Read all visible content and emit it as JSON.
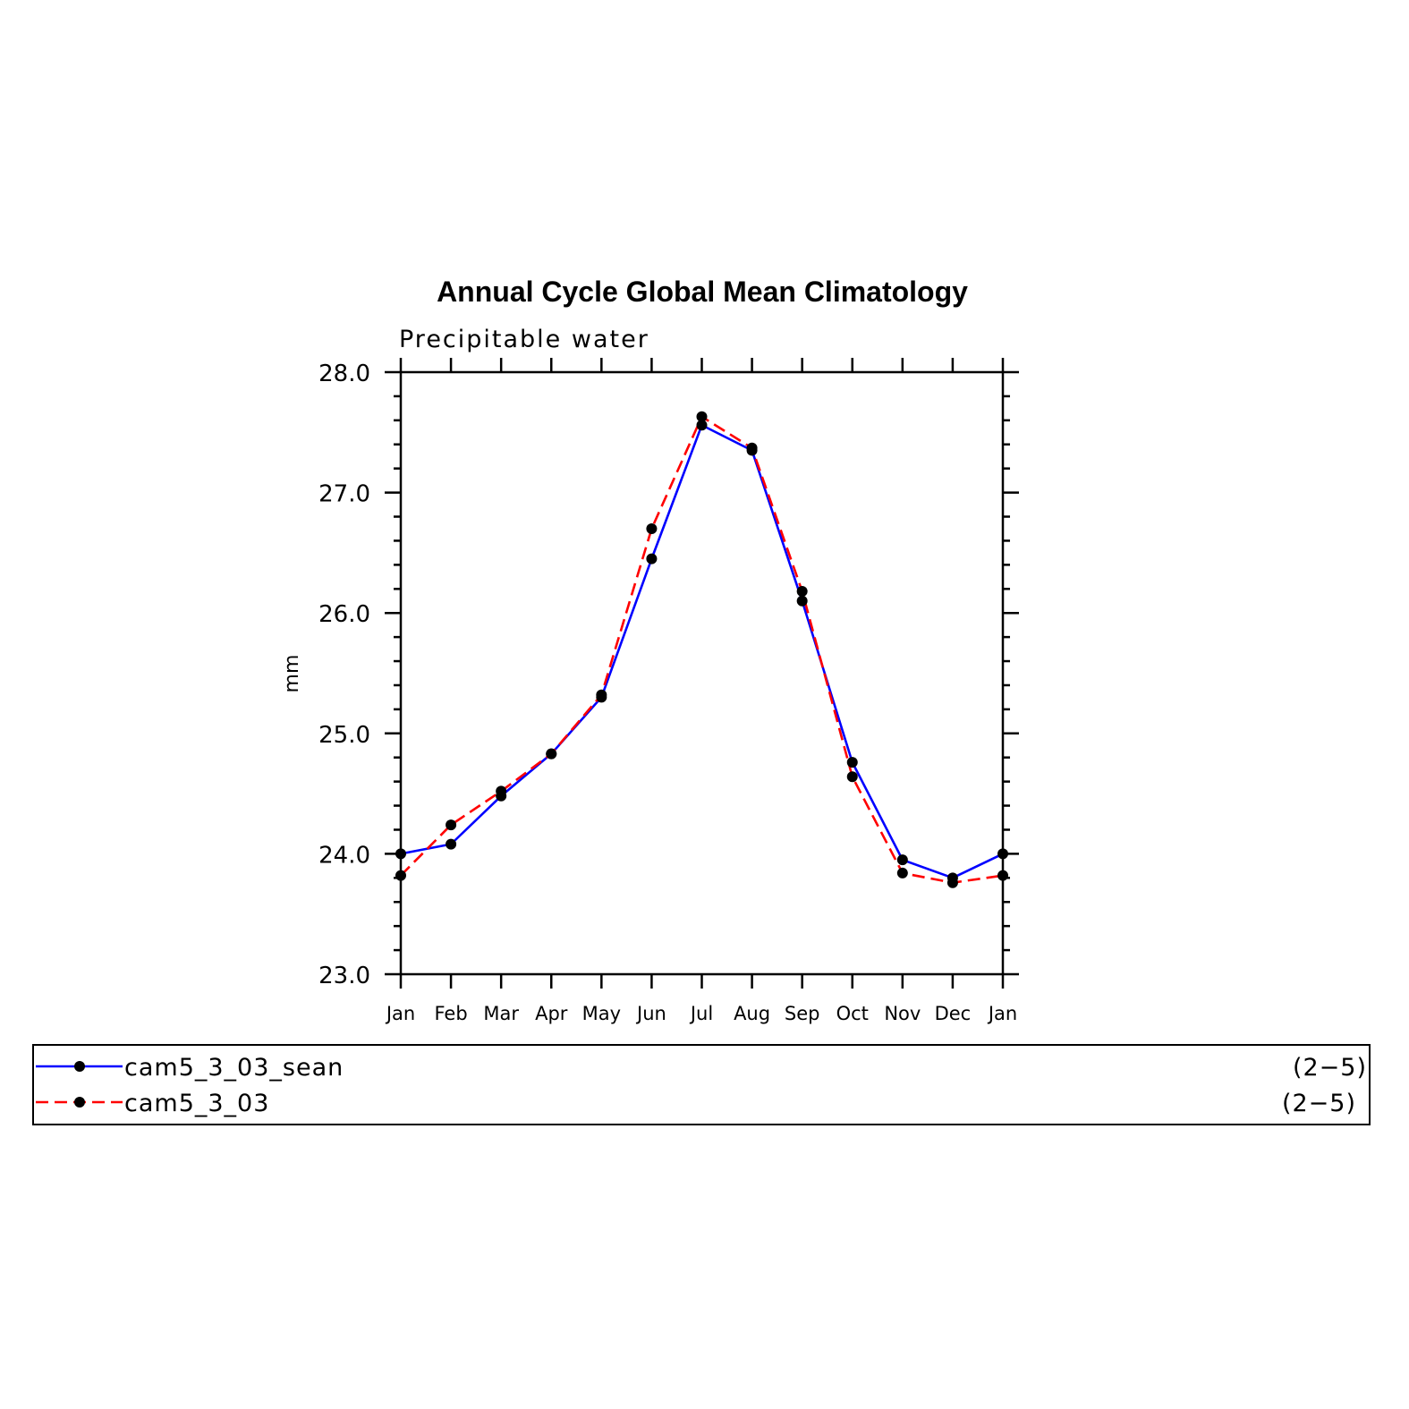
{
  "chart_data": {
    "type": "line",
    "title": "Annual Cycle Global Mean Climatology",
    "subtitle": "Precipitable water",
    "xlabel": "",
    "ylabel": "mm",
    "categories": [
      "Jan",
      "Feb",
      "Mar",
      "Apr",
      "May",
      "Jun",
      "Jul",
      "Aug",
      "Sep",
      "Oct",
      "Nov",
      "Dec",
      "Jan"
    ],
    "ylim": [
      23.0,
      28.0
    ],
    "yticks": [
      "23.0",
      "24.0",
      "25.0",
      "26.0",
      "27.0",
      "28.0"
    ],
    "grid": false,
    "legend_position": "bottom",
    "series": [
      {
        "name": "cam5_3_03_sean",
        "range": "(2−5)",
        "color": "#0000ff",
        "style": "solid",
        "values": [
          24.0,
          24.08,
          24.48,
          24.83,
          25.3,
          26.45,
          27.56,
          27.35,
          26.1,
          24.76,
          23.95,
          23.8,
          24.0
        ]
      },
      {
        "name": "cam5_3_03",
        "range": "(2−5)",
        "color": "#ff0000",
        "style": "dashed",
        "values": [
          23.82,
          24.24,
          24.52,
          24.83,
          25.32,
          26.7,
          27.63,
          27.37,
          26.18,
          24.64,
          23.84,
          23.76,
          23.82
        ]
      }
    ]
  }
}
